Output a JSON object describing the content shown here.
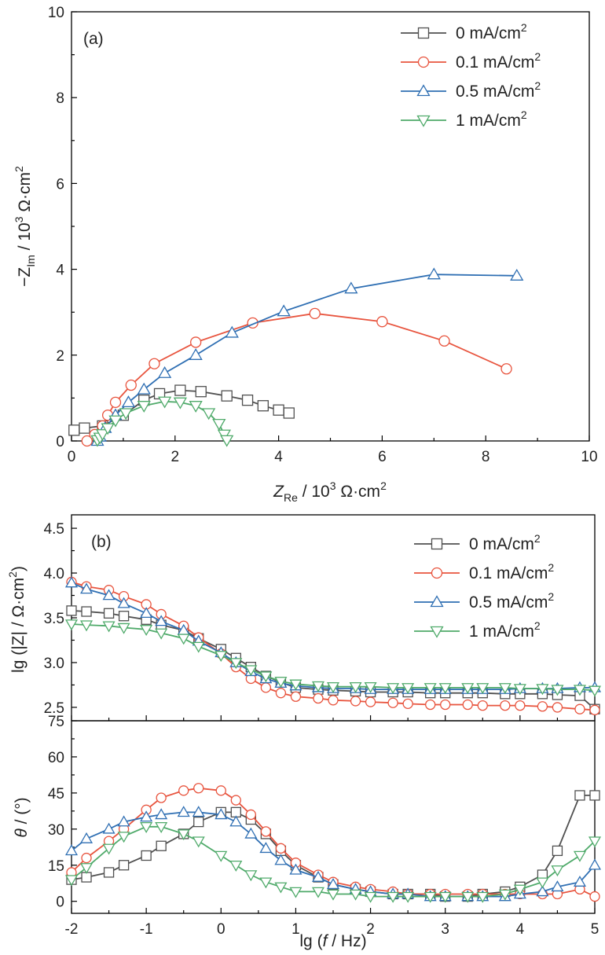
{
  "colors": {
    "0 mA/cm2": "#505050",
    "0.1 mA/cm2": "#e8543e",
    "0.5 mA/cm2": "#2f6fb3",
    "1 mA/cm2": "#4faa6a"
  },
  "legend": [
    {
      "label": "0 mA/cm",
      "sup": "2",
      "marker": "square"
    },
    {
      "label": "0.1 mA/cm",
      "sup": "2",
      "marker": "circle"
    },
    {
      "label": "0.5 mA/cm",
      "sup": "2",
      "marker": "triangle-up"
    },
    {
      "label": "1 mA/cm",
      "sup": "2",
      "marker": "triangle-down"
    }
  ],
  "chart_data": [
    {
      "type": "scatter",
      "panel_label": "(a)",
      "xlabel": "Z_Re / 10^3 Ω·cm^2",
      "ylabel": "−Z_Im / 10^3 Ω·cm^2",
      "xlim": [
        0,
        10
      ],
      "ylim": [
        0,
        10
      ],
      "x_ticks": [
        0,
        2,
        4,
        6,
        8,
        10
      ],
      "y_ticks": [
        0,
        2,
        4,
        6,
        8,
        10
      ],
      "legend_position": "top-right",
      "series": [
        {
          "name": "0 mA/cm2",
          "marker": "square",
          "points": [
            [
              0.05,
              0.25
            ],
            [
              0.25,
              0.3
            ],
            [
              0.6,
              0.35
            ],
            [
              1.0,
              0.6
            ],
            [
              1.4,
              0.95
            ],
            [
              1.7,
              1.1
            ],
            [
              2.1,
              1.18
            ],
            [
              2.5,
              1.15
            ],
            [
              3.0,
              1.05
            ],
            [
              3.4,
              0.95
            ],
            [
              3.7,
              0.82
            ],
            [
              4.0,
              0.72
            ],
            [
              4.2,
              0.65
            ]
          ]
        },
        {
          "name": "0.1 mA/cm2",
          "marker": "circle",
          "points": [
            [
              0.3,
              0.0
            ],
            [
              0.45,
              0.15
            ],
            [
              0.6,
              0.35
            ],
            [
              0.7,
              0.6
            ],
            [
              0.85,
              0.9
            ],
            [
              1.15,
              1.3
            ],
            [
              1.6,
              1.8
            ],
            [
              2.4,
              2.3
            ],
            [
              3.5,
              2.75
            ],
            [
              4.7,
              2.97
            ],
            [
              6.0,
              2.78
            ],
            [
              7.2,
              2.33
            ],
            [
              8.4,
              1.68
            ]
          ]
        },
        {
          "name": "0.5 mA/cm2",
          "marker": "triangle-up",
          "points": [
            [
              0.5,
              0.0
            ],
            [
              0.55,
              0.1
            ],
            [
              0.65,
              0.3
            ],
            [
              0.85,
              0.6
            ],
            [
              1.1,
              0.9
            ],
            [
              1.4,
              1.2
            ],
            [
              1.8,
              1.58
            ],
            [
              2.4,
              2.0
            ],
            [
              3.1,
              2.52
            ],
            [
              4.1,
              3.02
            ],
            [
              5.4,
              3.55
            ],
            [
              7.0,
              3.88
            ],
            [
              8.6,
              3.85
            ]
          ]
        },
        {
          "name": "1 mA/cm2",
          "marker": "triangle-down",
          "points": [
            [
              0.5,
              0.02
            ],
            [
              0.55,
              0.08
            ],
            [
              0.6,
              0.16
            ],
            [
              0.7,
              0.3
            ],
            [
              0.85,
              0.48
            ],
            [
              1.05,
              0.65
            ],
            [
              1.4,
              0.82
            ],
            [
              1.8,
              0.92
            ],
            [
              2.1,
              0.9
            ],
            [
              2.4,
              0.82
            ],
            [
              2.65,
              0.65
            ],
            [
              2.85,
              0.4
            ],
            [
              2.95,
              0.15
            ],
            [
              3.0,
              0.02
            ]
          ]
        }
      ]
    },
    {
      "type": "line",
      "panel_label": "(b)",
      "xlabel": "lg (f / Hz)",
      "ylabel": "lg (|Z| / Ω·cm^2)",
      "xlim": [
        -2,
        5
      ],
      "ylim": [
        2.35,
        4.65
      ],
      "y_ticks": [
        2.5,
        3.0,
        3.5,
        4.0,
        4.5
      ],
      "legend_position": "top-right",
      "x": [
        -2.0,
        -1.8,
        -1.5,
        -1.3,
        -1.0,
        -0.8,
        -0.5,
        -0.3,
        0.0,
        0.2,
        0.4,
        0.6,
        0.8,
        1.0,
        1.3,
        1.5,
        1.8,
        2.0,
        2.3,
        2.5,
        2.8,
        3.0,
        3.3,
        3.5,
        3.8,
        4.0,
        4.3,
        4.5,
        4.8,
        5.0
      ],
      "series": [
        {
          "name": "0 mA/cm2",
          "marker": "square",
          "values": [
            3.58,
            3.57,
            3.55,
            3.52,
            3.48,
            3.42,
            3.36,
            3.27,
            3.15,
            3.05,
            2.95,
            2.85,
            2.78,
            2.72,
            2.7,
            2.69,
            2.68,
            2.67,
            2.67,
            2.67,
            2.66,
            2.66,
            2.66,
            2.66,
            2.65,
            2.65,
            2.65,
            2.64,
            2.63,
            2.48
          ]
        },
        {
          "name": "0.1 mA/cm2",
          "marker": "circle",
          "values": [
            3.9,
            3.85,
            3.81,
            3.74,
            3.65,
            3.54,
            3.41,
            3.28,
            3.1,
            2.95,
            2.82,
            2.72,
            2.66,
            2.62,
            2.6,
            2.58,
            2.57,
            2.56,
            2.55,
            2.54,
            2.53,
            2.53,
            2.53,
            2.52,
            2.52,
            2.52,
            2.51,
            2.5,
            2.48,
            2.47
          ]
        },
        {
          "name": "0.5 mA/cm2",
          "marker": "triangle-up",
          "values": [
            3.89,
            3.82,
            3.75,
            3.66,
            3.55,
            3.46,
            3.36,
            3.24,
            3.11,
            3.0,
            2.9,
            2.82,
            2.77,
            2.74,
            2.72,
            2.71,
            2.71,
            2.7,
            2.7,
            2.7,
            2.7,
            2.7,
            2.7,
            2.7,
            2.7,
            2.71,
            2.71,
            2.71,
            2.72,
            2.72
          ]
        },
        {
          "name": "1 mA/cm2",
          "marker": "triangle-down",
          "values": [
            3.43,
            3.42,
            3.41,
            3.39,
            3.37,
            3.33,
            3.27,
            3.18,
            3.08,
            3.0,
            2.92,
            2.85,
            2.79,
            2.76,
            2.74,
            2.73,
            2.73,
            2.73,
            2.72,
            2.72,
            2.72,
            2.72,
            2.72,
            2.72,
            2.72,
            2.71,
            2.71,
            2.7,
            2.7,
            2.69
          ]
        }
      ]
    },
    {
      "type": "line",
      "xlabel": "lg (f / Hz)",
      "ylabel": "θ / (°)",
      "xlim": [
        -2,
        5
      ],
      "ylim": [
        -5,
        75
      ],
      "x_ticks": [
        -2,
        -1,
        0,
        1,
        2,
        3,
        4,
        5
      ],
      "y_ticks": [
        0,
        15,
        30,
        45,
        60,
        75
      ],
      "x": [
        -2.0,
        -1.8,
        -1.5,
        -1.3,
        -1.0,
        -0.8,
        -0.5,
        -0.3,
        0.0,
        0.2,
        0.4,
        0.6,
        0.8,
        1.0,
        1.3,
        1.5,
        1.8,
        2.0,
        2.3,
        2.5,
        2.8,
        3.0,
        3.3,
        3.5,
        3.8,
        4.0,
        4.3,
        4.5,
        4.8,
        5.0
      ],
      "series": [
        {
          "name": "0 mA/cm2",
          "marker": "square",
          "values": [
            9,
            10,
            12,
            15,
            19,
            23,
            28,
            33,
            37,
            37,
            34,
            28,
            21,
            15,
            10,
            7,
            5,
            4,
            3,
            3,
            3,
            2,
            2,
            3,
            4,
            6,
            11,
            21,
            44,
            44
          ]
        },
        {
          "name": "0.1 mA/cm2",
          "marker": "circle",
          "values": [
            12,
            18,
            25,
            30,
            38,
            43,
            46,
            47,
            46,
            42,
            36,
            29,
            22,
            16,
            11,
            8,
            6,
            5,
            4,
            3,
            3,
            3,
            3,
            3,
            3,
            3,
            3,
            3,
            5,
            2
          ]
        },
        {
          "name": "0.5 mA/cm2",
          "marker": "triangle-up",
          "values": [
            21,
            26,
            30,
            33,
            35,
            36,
            37,
            37,
            36,
            33,
            28,
            22,
            17,
            13,
            10,
            7,
            5,
            4,
            3,
            3,
            2,
            2,
            2,
            2,
            2,
            3,
            4,
            6,
            8,
            15
          ]
        },
        {
          "name": "1 mA/cm2",
          "marker": "triangle-down",
          "values": [
            9,
            14,
            22,
            27,
            31,
            31,
            28,
            25,
            19,
            15,
            11,
            8,
            6,
            4,
            4,
            3,
            3,
            2,
            2,
            2,
            2,
            2,
            2,
            2,
            3,
            5,
            8,
            13,
            19,
            25
          ]
        }
      ]
    }
  ]
}
